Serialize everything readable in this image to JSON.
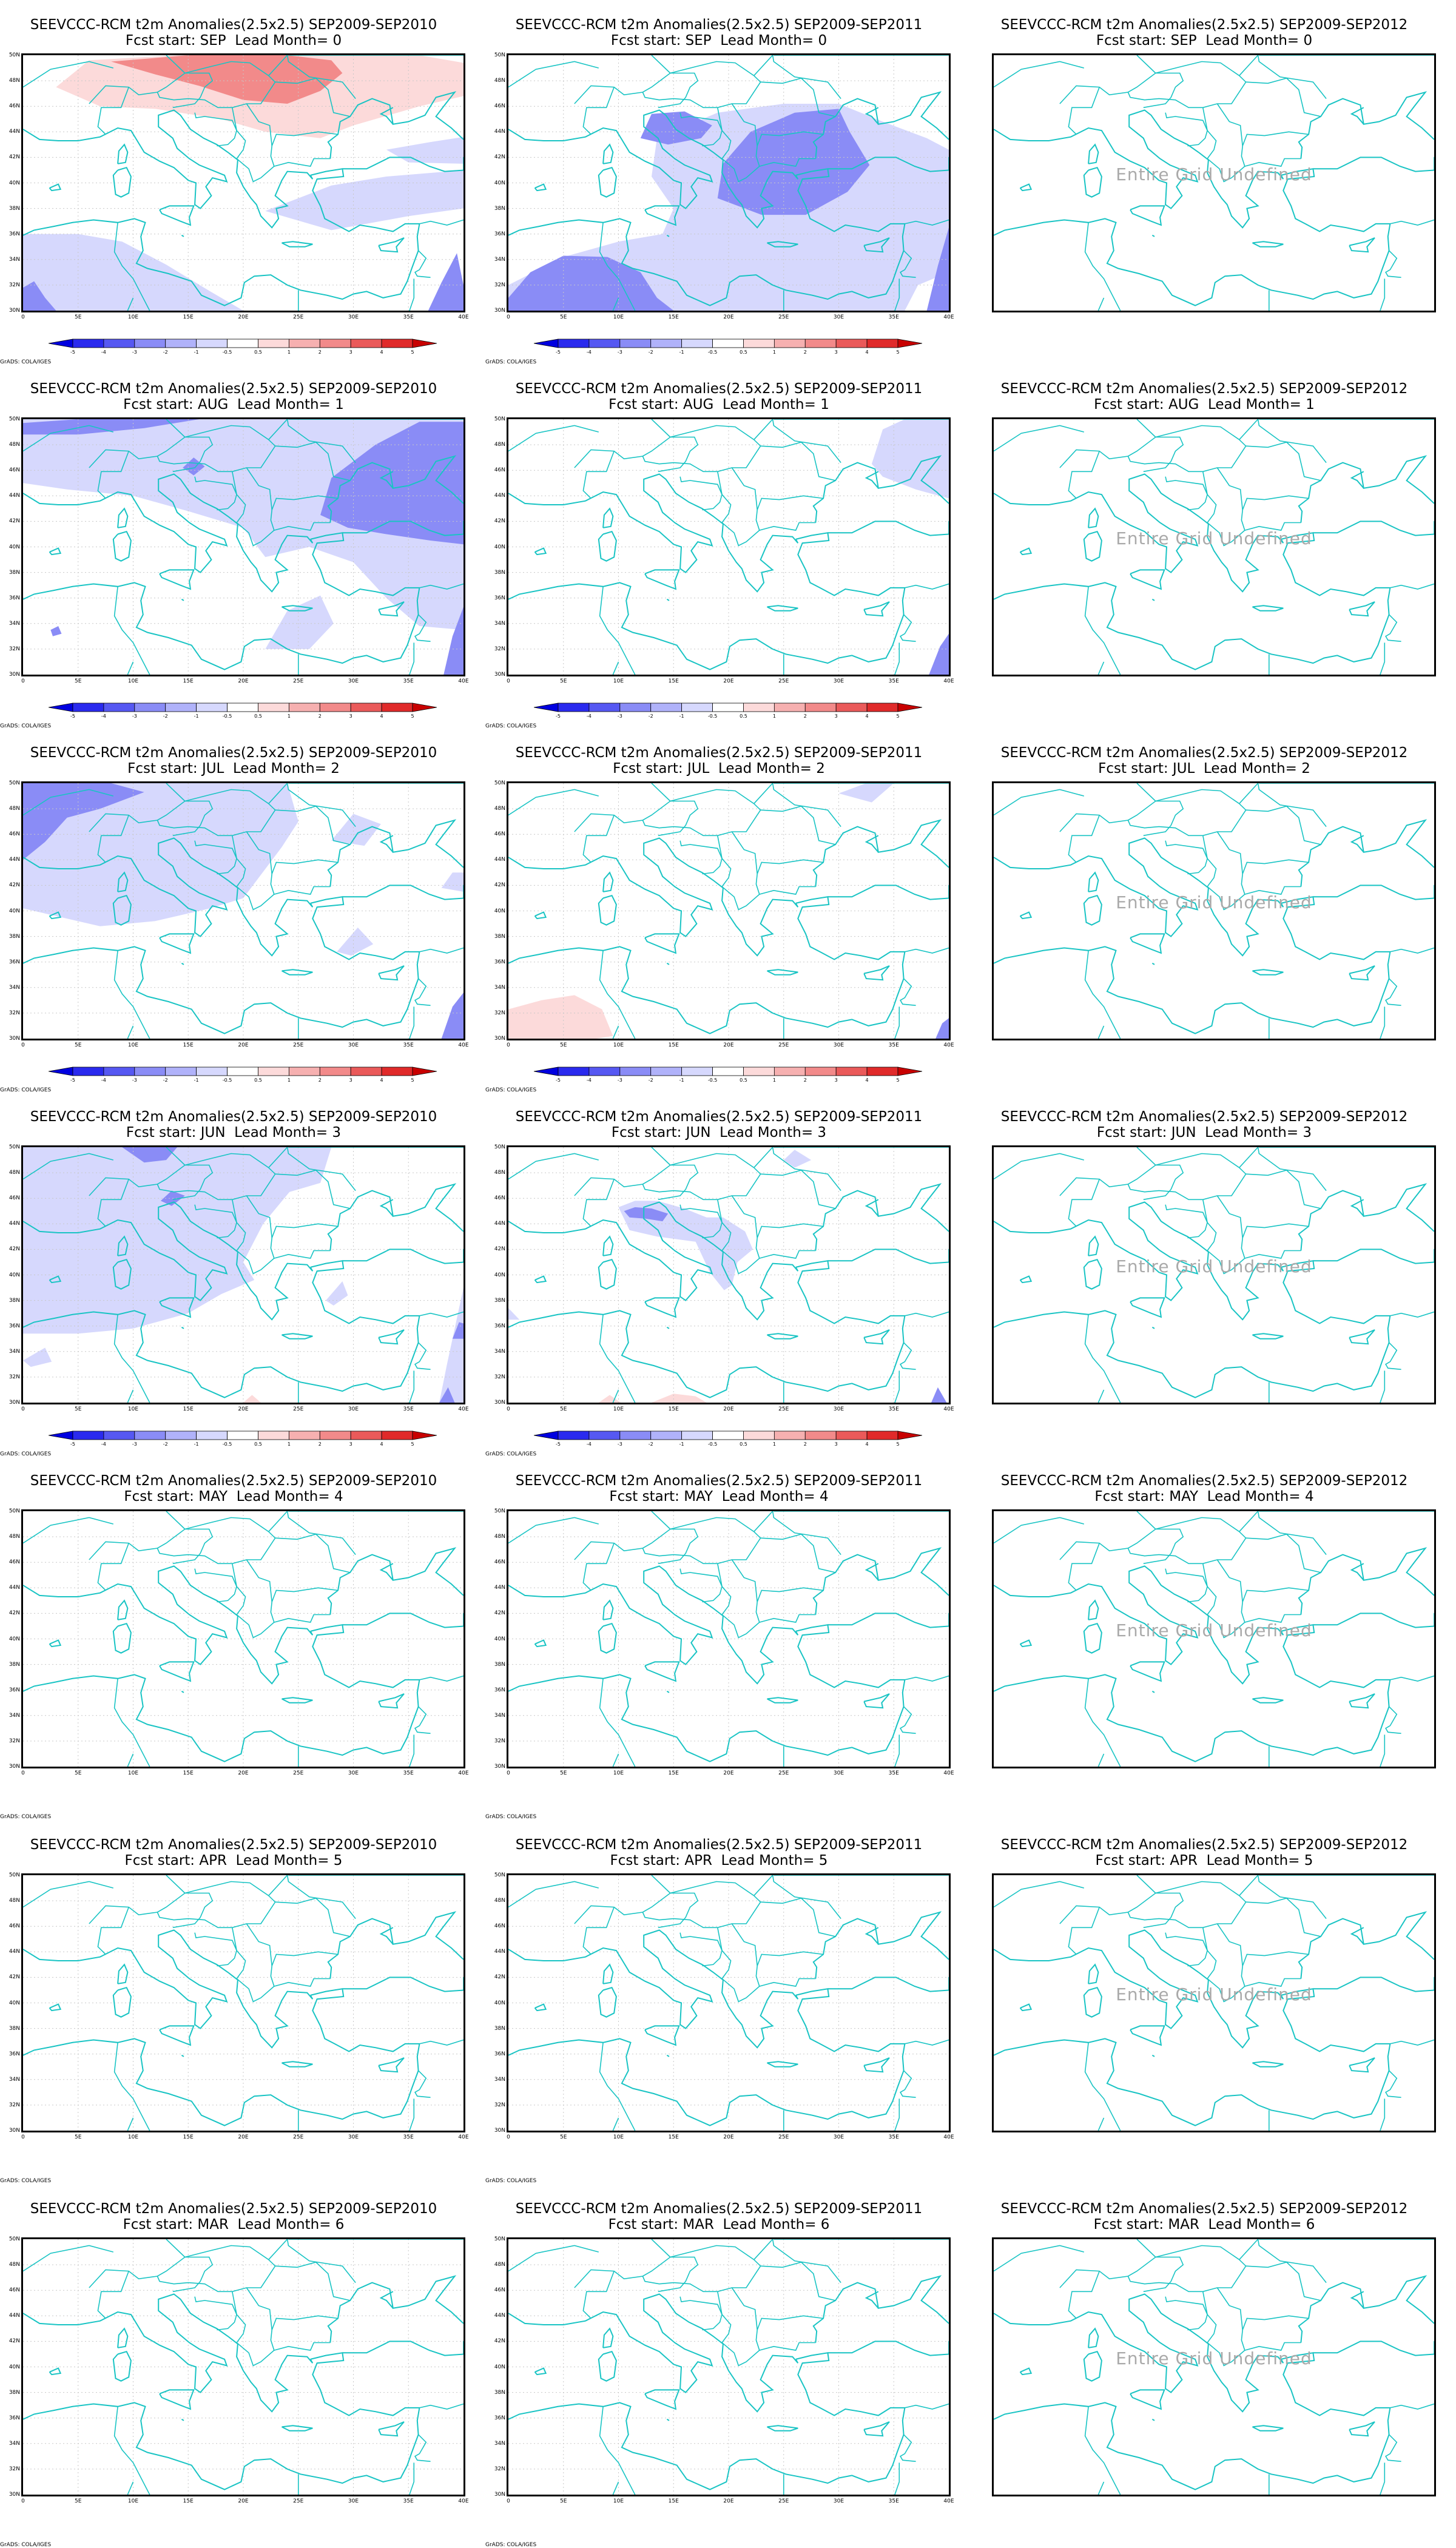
{
  "figure": {
    "undefined_text": "Entire Grid Undefined",
    "credit": "GrADS: COLA/IGES",
    "colors": {
      "coast": "#19c4c4",
      "blue_strong": "#8a8cf6",
      "blue_light": "#d6d8fd",
      "red_strong": "#f28a8a",
      "red_light": "#fcdada"
    }
  },
  "axes": {
    "y_ticks": [
      "50N",
      "48N",
      "46N",
      "44N",
      "42N",
      "40N",
      "38N",
      "36N",
      "34N",
      "32N",
      "30N"
    ],
    "x_ticks": [
      "0",
      "5E",
      "10E",
      "15E",
      "20E",
      "25E",
      "30E",
      "35E",
      "40E"
    ]
  },
  "colorbar": {
    "labels": [
      "-5",
      "-4",
      "-3",
      "-2",
      "-1",
      "-0.5",
      "0.5",
      "1",
      "2",
      "3",
      "4",
      "5"
    ],
    "colors": [
      "#0000e0",
      "#2a2aee",
      "#5658f2",
      "#8a8cf6",
      "#b0b2fa",
      "#d6d8fd",
      "#ffffff",
      "#fcdada",
      "#f6b0b0",
      "#f28a8a",
      "#ea5a5a",
      "#e02a2a",
      "#c80000"
    ]
  },
  "columns": [
    {
      "title": "SEEVCCC-RCM t2m Anomalies(2.5x2.5) SEP2009-SEP2010"
    },
    {
      "title": "SEEVCCC-RCM t2m Anomalies(2.5x2.5) SEP2009-SEP2011"
    },
    {
      "title": "SEEVCCC-RCM t2m Anomalies(2.5x2.5) SEP2009-SEP2012"
    }
  ],
  "rows": [
    {
      "subtitle": "Fcst start: SEP  Lead Month= 0",
      "fields": [
        "r1",
        "b1",
        "undef"
      ]
    },
    {
      "subtitle": "Fcst start: AUG  Lead Month= 1",
      "fields": [
        "b2",
        "b3",
        "undef"
      ]
    },
    {
      "subtitle": "Fcst start: JUL  Lead Month= 2",
      "fields": [
        "b4",
        "r2",
        "undef"
      ]
    },
    {
      "subtitle": "Fcst start: JUN  Lead Month= 3",
      "fields": [
        "b5",
        "b6",
        "undef"
      ]
    },
    {
      "subtitle": "Fcst start: MAY  Lead Month= 4",
      "fields": [
        "none",
        "none",
        "undef"
      ]
    },
    {
      "subtitle": "Fcst start: APR  Lead Month= 5",
      "fields": [
        "none",
        "none",
        "undef"
      ]
    },
    {
      "subtitle": "Fcst start: MAR  Lead Month= 6",
      "fields": [
        "none",
        "none",
        "undef"
      ]
    }
  ]
}
